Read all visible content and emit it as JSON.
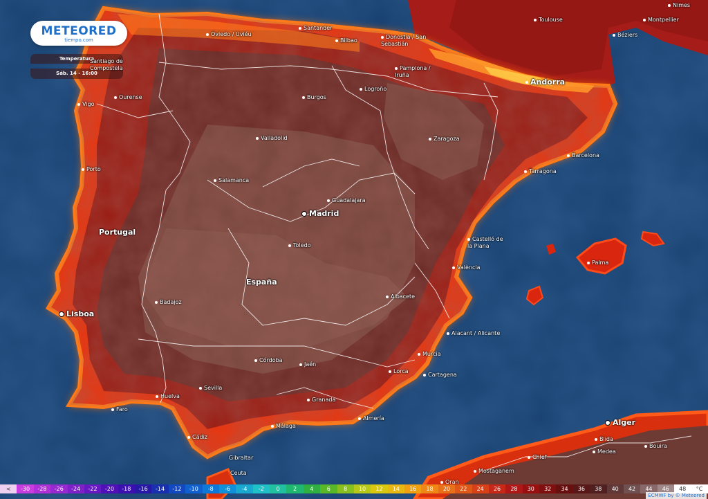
{
  "brand": {
    "name": "METEORED",
    "sub": "tiempo.com"
  },
  "panel": {
    "title": "Temperatura",
    "time": "Sáb. 14 - 16:00"
  },
  "places": [
    {
      "key": "nimes",
      "label": "Nimes"
    },
    {
      "key": "toulouse",
      "label": "Toulouse"
    },
    {
      "key": "montpellier",
      "label": "Montpellier"
    },
    {
      "key": "beziers",
      "label": "Béziers"
    },
    {
      "key": "oviedo",
      "label": "Oviedo / Uviéu"
    },
    {
      "key": "santander",
      "label": "Santander"
    },
    {
      "key": "bilbao",
      "label": "Bilbao"
    },
    {
      "key": "donostia",
      "label": "Donostia / San\nSebastián"
    },
    {
      "key": "santiago",
      "label": "Santiago de\nCompostela"
    },
    {
      "key": "pamplona",
      "label": "Pamplona /\nIruña"
    },
    {
      "key": "andorra",
      "label": "Andorra"
    },
    {
      "key": "vigo",
      "label": "Vigo"
    },
    {
      "key": "ourense",
      "label": "Ourense"
    },
    {
      "key": "burgos",
      "label": "Burgos"
    },
    {
      "key": "logrono",
      "label": "Logroño"
    },
    {
      "key": "valladolid",
      "label": "Valladolid"
    },
    {
      "key": "zaragoza",
      "label": "Zaragoza"
    },
    {
      "key": "barcelona",
      "label": "Barcelona"
    },
    {
      "key": "porto",
      "label": "Porto"
    },
    {
      "key": "tarragona",
      "label": "Tarragona"
    },
    {
      "key": "salamanca",
      "label": "Salamanca"
    },
    {
      "key": "guadalajara",
      "label": "Guadalajara"
    },
    {
      "key": "madrid",
      "label": "Madrid"
    },
    {
      "key": "portugal",
      "label": "Portugal"
    },
    {
      "key": "castello",
      "label": "Castelló de\nla Plana"
    },
    {
      "key": "toledo",
      "label": "Toledo"
    },
    {
      "key": "palma",
      "label": "Palma"
    },
    {
      "key": "valencia",
      "label": "València"
    },
    {
      "key": "espana",
      "label": "España"
    },
    {
      "key": "lisboa",
      "label": "Lisboa"
    },
    {
      "key": "badajoz",
      "label": "Badajoz"
    },
    {
      "key": "albacete",
      "label": "Albacete"
    },
    {
      "key": "alacant",
      "label": "Alacant / Alicante"
    },
    {
      "key": "cordoba",
      "label": "Córdoba"
    },
    {
      "key": "jaen",
      "label": "Jaén"
    },
    {
      "key": "murcia",
      "label": "Murcia"
    },
    {
      "key": "lorca",
      "label": "Lorca"
    },
    {
      "key": "cartagena",
      "label": "Cartagena"
    },
    {
      "key": "sevilla",
      "label": "Sevilla"
    },
    {
      "key": "huelva",
      "label": "Huelva"
    },
    {
      "key": "granada",
      "label": "Granada"
    },
    {
      "key": "faro",
      "label": "Faro"
    },
    {
      "key": "almeria",
      "label": "Almería"
    },
    {
      "key": "alger",
      "label": "Alger"
    },
    {
      "key": "malaga",
      "label": "Málaga"
    },
    {
      "key": "cadiz",
      "label": "Cádiz"
    },
    {
      "key": "blida",
      "label": "Blida"
    },
    {
      "key": "chlef",
      "label": "Chlef"
    },
    {
      "key": "medea",
      "label": "Medea"
    },
    {
      "key": "bouira",
      "label": "Bouira"
    },
    {
      "key": "gibraltar",
      "label": "Gibraltar"
    },
    {
      "key": "ceuta",
      "label": "Ceuta"
    },
    {
      "key": "mostaganem",
      "label": "Mostaganem"
    },
    {
      "key": "oran",
      "label": "Oran"
    }
  ],
  "legend": {
    "unit": "°C",
    "labels": [
      "<",
      "-30",
      "-28",
      "-26",
      "-24",
      "-22",
      "-20",
      "-18",
      "-16",
      "-14",
      "-12",
      "-10",
      "-8",
      "-6",
      "-4",
      "-2",
      "0",
      "2",
      "4",
      "6",
      "8",
      "10",
      "12",
      "14",
      "16",
      "18",
      "20",
      "22",
      "24",
      "26",
      "28",
      "30",
      "32",
      "34",
      "36",
      "38",
      "40",
      "42",
      "44",
      "46",
      "48"
    ],
    "colors": [
      "#f0d0f0",
      "#c83ce0",
      "#b030d8",
      "#9828d0",
      "#8020c8",
      "#6818c0",
      "#5010b8",
      "#3c10b0",
      "#2818a8",
      "#1830b0",
      "#1448c0",
      "#1060d0",
      "#0c78d8",
      "#1090d8",
      "#18a8d0",
      "#20c0c8",
      "#20c0a0",
      "#20b870",
      "#30b040",
      "#58b828",
      "#88c020",
      "#b8c818",
      "#d8c810",
      "#e8b810",
      "#f0a010",
      "#f08818",
      "#e87018",
      "#e05818",
      "#d84018",
      "#c82818",
      "#b01818",
      "#981010",
      "#801010",
      "#681010",
      "#581818",
      "#502020",
      "#603838",
      "#705050",
      "#886868",
      "#a08888",
      "#ffffff"
    ]
  },
  "credit": "ECMWF by © Meteored"
}
